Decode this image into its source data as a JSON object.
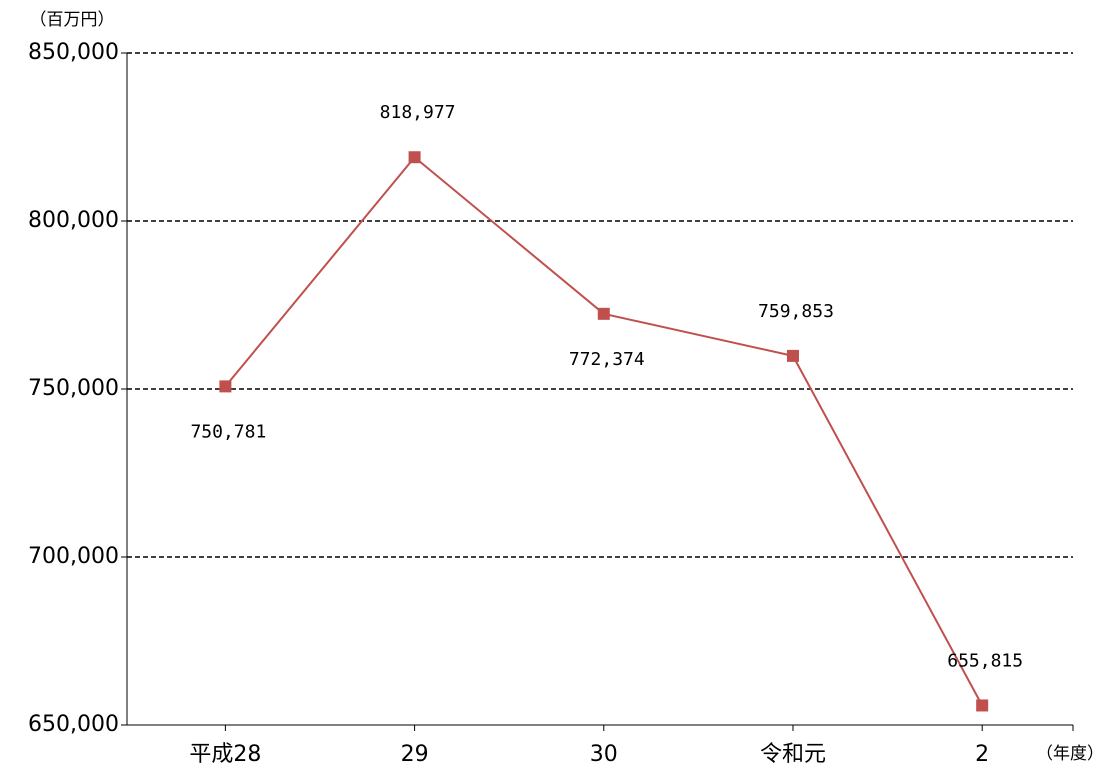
{
  "chart_data": {
    "type": "line",
    "y_label": "（百万円）",
    "x_label": "（年度）",
    "categories": [
      "平成28",
      "29",
      "30",
      "令和元",
      "2"
    ],
    "series": [
      {
        "name": null,
        "color": "#c0504d",
        "values": [
          750781,
          818977,
          772374,
          759853,
          655815
        ],
        "value_labels": [
          "750,781",
          "818,977",
          "772,374",
          "759,853",
          "655,815"
        ]
      }
    ],
    "ylim": [
      650000,
      850000
    ],
    "yticks": [
      {
        "value": 650000,
        "label": "650,000"
      },
      {
        "value": 700000,
        "label": "700,000"
      },
      {
        "value": 750000,
        "label": "750,000"
      },
      {
        "value": 800000,
        "label": "800,000"
      },
      {
        "value": 850000,
        "label": "850,000"
      }
    ],
    "grid": true
  }
}
